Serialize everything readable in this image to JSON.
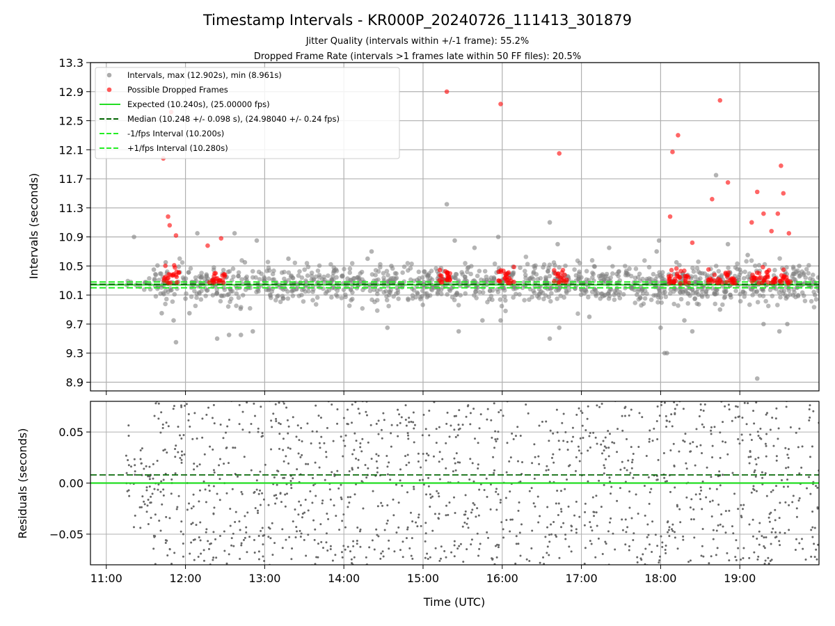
{
  "chart_data": [
    {
      "type": "scatter",
      "panel": "intervals",
      "title": "Timestamp Intervals - KR000P_20240726_111413_301879",
      "subtitle_lines": [
        "Jitter Quality (intervals within +/-1 frame): 55.2%",
        "Dropped Frame Rate (intervals >1 frames late within 50 FF files): 20.5%"
      ],
      "ylabel": "Intervals (seconds)",
      "xlabel": "",
      "xlim_hours": [
        10.8,
        20.0
      ],
      "ylim": [
        8.78,
        13.3
      ],
      "yticks": [
        "8.9",
        "9.3",
        "9.7",
        "10.1",
        "10.5",
        "10.9",
        "11.3",
        "11.7",
        "12.1",
        "12.5",
        "12.9",
        "13.3"
      ],
      "grid": true,
      "legend_position": "top-left",
      "legend": [
        "Intervals, max (12.902s), min (8.961s)",
        "Possible Dropped Frames",
        "Expected (10.240s), (25.00000 fps)",
        "Median (10.248 +/- 0.098 s), (24.98040 +/- 0.24 fps)",
        "-1/fps Interval (10.200s)",
        "+1/fps Interval (10.280s)"
      ],
      "reference_lines": {
        "expected": 10.24,
        "median": 10.248,
        "minus_one_fps": 10.2,
        "plus_one_fps": 10.28
      },
      "series": [
        {
          "name": "Intervals",
          "color": "#808080",
          "points": [
            [
              11.35,
              10.9
            ],
            [
              11.6,
              10.45
            ],
            [
              11.7,
              9.85
            ],
            [
              11.75,
              10.55
            ],
            [
              11.85,
              9.75
            ],
            [
              11.88,
              9.45
            ],
            [
              12.0,
              10.05
            ],
            [
              12.05,
              9.85
            ],
            [
              12.15,
              10.95
            ],
            [
              12.4,
              9.5
            ],
            [
              12.55,
              9.55
            ],
            [
              12.62,
              10.95
            ],
            [
              12.7,
              9.55
            ],
            [
              12.75,
              10.55
            ],
            [
              12.85,
              9.6
            ],
            [
              12.9,
              10.85
            ],
            [
              13.3,
              10.6
            ],
            [
              13.9,
              10.45
            ],
            [
              14.3,
              10.6
            ],
            [
              14.35,
              10.7
            ],
            [
              14.55,
              9.65
            ],
            [
              14.6,
              10.5
            ],
            [
              15.3,
              11.35
            ],
            [
              15.4,
              10.85
            ],
            [
              15.45,
              9.6
            ],
            [
              15.65,
              10.75
            ],
            [
              15.75,
              9.75
            ],
            [
              15.95,
              10.9
            ],
            [
              15.98,
              9.75
            ],
            [
              16.6,
              11.1
            ],
            [
              16.6,
              9.5
            ],
            [
              16.7,
              10.8
            ],
            [
              16.72,
              9.65
            ],
            [
              17.1,
              9.8
            ],
            [
              17.35,
              10.75
            ],
            [
              17.95,
              10.7
            ],
            [
              17.98,
              10.85
            ],
            [
              18.0,
              9.65
            ],
            [
              18.05,
              9.3
            ],
            [
              18.08,
              9.3
            ],
            [
              18.2,
              10.55
            ],
            [
              18.3,
              9.75
            ],
            [
              18.4,
              9.6
            ],
            [
              18.5,
              10.4
            ],
            [
              18.7,
              11.75
            ],
            [
              18.75,
              9.9
            ],
            [
              18.85,
              10.8
            ],
            [
              19.0,
              10.45
            ],
            [
              19.1,
              10.65
            ],
            [
              19.22,
              8.95
            ],
            [
              19.3,
              9.7
            ],
            [
              19.5,
              9.6
            ],
            [
              19.6,
              9.7
            ],
            [
              19.75,
              10.5
            ],
            [
              19.95,
              10.1
            ]
          ]
        },
        {
          "name": "Possible Dropped Frames",
          "color": "#ff0000",
          "points": [
            [
              11.72,
              11.98
            ],
            [
              11.78,
              11.18
            ],
            [
              11.8,
              11.06
            ],
            [
              11.82,
              12.62
            ],
            [
              11.88,
              10.92
            ],
            [
              12.28,
              10.78
            ],
            [
              12.45,
              10.88
            ],
            [
              15.3,
              12.9
            ],
            [
              15.98,
              12.73
            ],
            [
              16.72,
              12.05
            ],
            [
              18.12,
              11.18
            ],
            [
              18.15,
              12.07
            ],
            [
              18.22,
              12.3
            ],
            [
              18.4,
              10.82
            ],
            [
              18.65,
              11.42
            ],
            [
              18.75,
              12.78
            ],
            [
              18.85,
              11.65
            ],
            [
              19.15,
              11.1
            ],
            [
              19.22,
              11.52
            ],
            [
              19.3,
              11.22
            ],
            [
              19.4,
              10.98
            ],
            [
              19.48,
              11.22
            ],
            [
              19.52,
              11.88
            ],
            [
              19.55,
              11.5
            ],
            [
              19.62,
              10.95
            ]
          ]
        }
      ]
    },
    {
      "type": "scatter",
      "panel": "residuals",
      "title": "",
      "xlabel": "Time (UTC)",
      "ylabel": "Residuals (seconds)",
      "xlim_hours": [
        10.8,
        20.0
      ],
      "ylim": [
        -0.08,
        0.08
      ],
      "yticks": [
        "−0.05",
        "0.00",
        "0.05"
      ],
      "ytick_values": [
        -0.05,
        0.0,
        0.05
      ],
      "xticks": [
        "11:00",
        "12:00",
        "13:00",
        "14:00",
        "15:00",
        "16:00",
        "17:00",
        "18:00",
        "19:00"
      ],
      "xtick_values": [
        11,
        12,
        13,
        14,
        15,
        16,
        17,
        18,
        19
      ],
      "reference_lines": {
        "zero": 0.0,
        "median_offset": 0.008
      },
      "grid": true
    }
  ],
  "colors": {
    "grid": "#b0b0b0",
    "intervals_point": "#808080",
    "dropped_point": "#ff0000",
    "expected_line": "#22dd22",
    "median_line": "#006400",
    "fps_line": "#22ee22",
    "residual_point": "#666666"
  }
}
